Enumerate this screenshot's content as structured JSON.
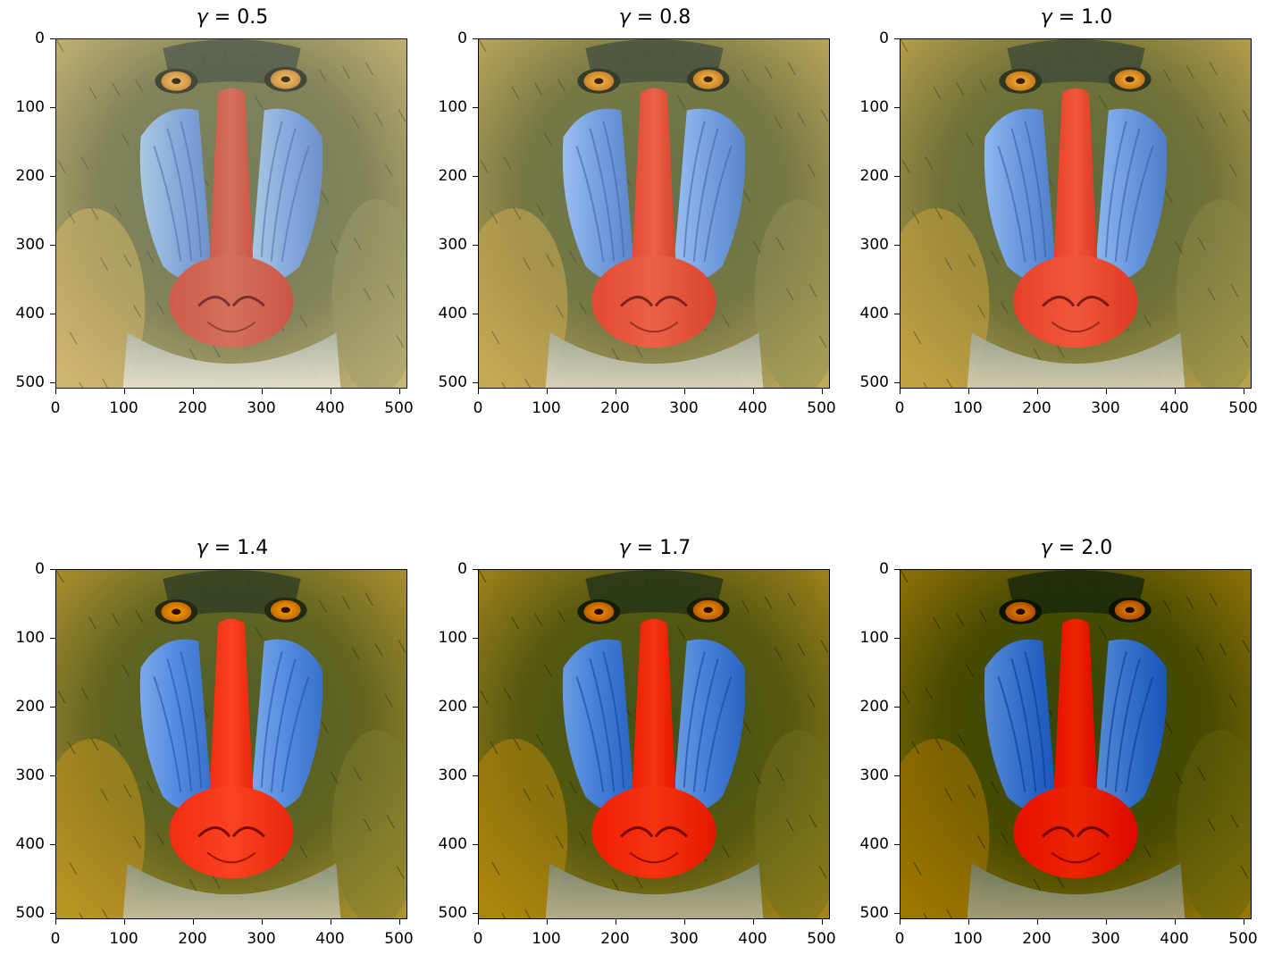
{
  "figure": {
    "gamma_symbol": "γ",
    "equals": " = ",
    "x_ticks": [
      "0",
      "100",
      "200",
      "300",
      "400",
      "500"
    ],
    "y_ticks": [
      "0",
      "100",
      "200",
      "300",
      "400",
      "500"
    ],
    "panels": [
      {
        "gamma_value": "0.5",
        "tone": "light"
      },
      {
        "gamma_value": "0.8",
        "tone": "mid-light"
      },
      {
        "gamma_value": "1.0",
        "tone": "normal"
      },
      {
        "gamma_value": "1.4",
        "tone": "mid-dark"
      },
      {
        "gamma_value": "1.7",
        "tone": "dark"
      },
      {
        "gamma_value": "2.0",
        "tone": "darker"
      }
    ],
    "image_subject": "mandrill face",
    "colors": {
      "fur": "#6e6f3a",
      "nose": "#e8492f",
      "cheeks": "#6b9be0",
      "eyes": "#e59a1f"
    }
  }
}
